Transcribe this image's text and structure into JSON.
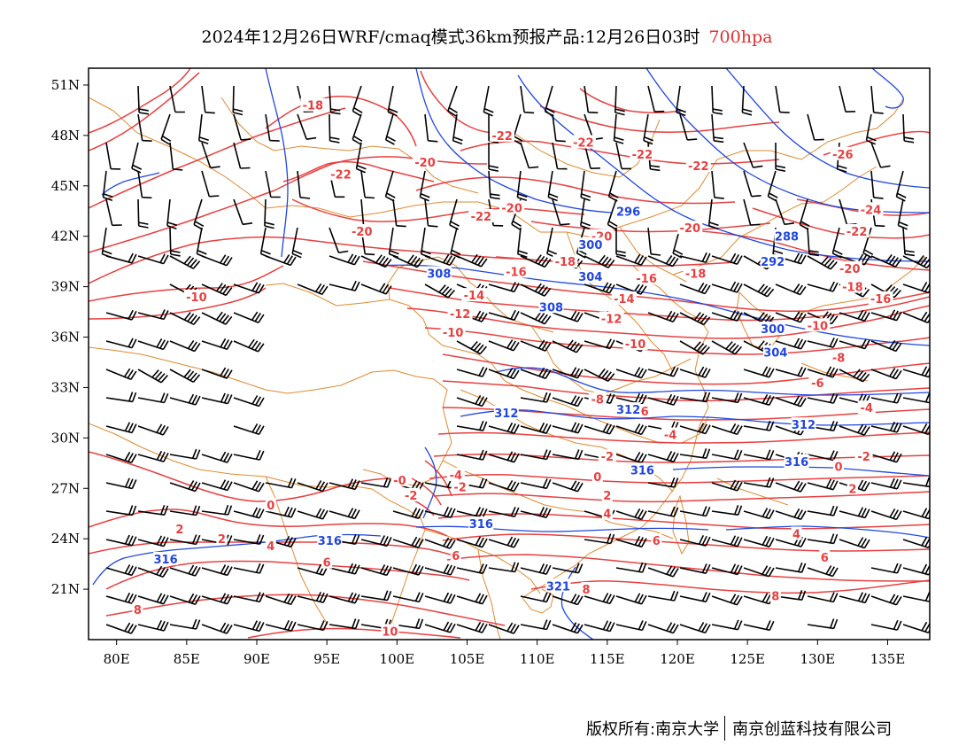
{
  "title": {
    "main": "2024年12月26日WRF/cmaq模式36km预报产品:12月26日03时",
    "level": "700hpa"
  },
  "axes": {
    "lon_ticks": [
      "80E",
      "85E",
      "90E",
      "95E",
      "100E",
      "105E",
      "110E",
      "115E",
      "120E",
      "125E",
      "130E",
      "135E"
    ],
    "lat_ticks": [
      "51N",
      "48N",
      "45N",
      "42N",
      "39N",
      "36N",
      "33N",
      "30N",
      "27N",
      "24N",
      "21N"
    ],
    "lon_range": [
      78,
      138
    ],
    "lat_range": [
      18,
      52
    ]
  },
  "colors": {
    "temperature": "#e84040",
    "height": "#2046e0",
    "boundary": "#e08a30",
    "wind": "#000000",
    "level_text": "#e03030"
  },
  "temperature_labels": [
    {
      "text": "-18",
      "lon": 94.0,
      "lat": 49.8
    },
    {
      "text": "-20",
      "lon": 102.0,
      "lat": 46.4
    },
    {
      "text": "-22",
      "lon": 96.0,
      "lat": 45.7
    },
    {
      "text": "-22",
      "lon": 107.5,
      "lat": 48.0
    },
    {
      "text": "-22",
      "lon": 113.3,
      "lat": 47.6
    },
    {
      "text": "-22",
      "lon": 117.5,
      "lat": 46.9
    },
    {
      "text": "-22",
      "lon": 121.5,
      "lat": 46.2
    },
    {
      "text": "-26",
      "lon": 131.8,
      "lat": 46.9
    },
    {
      "text": "-24",
      "lon": 133.8,
      "lat": 43.6
    },
    {
      "text": "-22",
      "lon": 132.8,
      "lat": 42.3
    },
    {
      "text": "-22",
      "lon": 106.0,
      "lat": 43.2
    },
    {
      "text": "-20",
      "lon": 108.2,
      "lat": 43.7
    },
    {
      "text": "-20",
      "lon": 97.5,
      "lat": 42.3
    },
    {
      "text": "-20",
      "lon": 114.6,
      "lat": 42.0
    },
    {
      "text": "-20",
      "lon": 120.9,
      "lat": 42.5
    },
    {
      "text": "-16",
      "lon": 108.5,
      "lat": 39.9
    },
    {
      "text": "-18",
      "lon": 112.0,
      "lat": 40.5
    },
    {
      "text": "-16",
      "lon": 117.8,
      "lat": 39.5
    },
    {
      "text": "-18",
      "lon": 121.3,
      "lat": 39.8
    },
    {
      "text": "-20",
      "lon": 132.3,
      "lat": 40.1
    },
    {
      "text": "-18",
      "lon": 132.5,
      "lat": 39.0
    },
    {
      "text": "-16",
      "lon": 134.5,
      "lat": 38.3
    },
    {
      "text": "-14",
      "lon": 105.5,
      "lat": 38.5
    },
    {
      "text": "-14",
      "lon": 116.2,
      "lat": 38.3
    },
    {
      "text": "-12",
      "lon": 104.5,
      "lat": 37.4
    },
    {
      "text": "-12",
      "lon": 115.3,
      "lat": 37.1
    },
    {
      "text": "-10",
      "lon": 85.7,
      "lat": 38.4
    },
    {
      "text": "-10",
      "lon": 104.0,
      "lat": 36.3
    },
    {
      "text": "-10",
      "lon": 117.0,
      "lat": 35.6
    },
    {
      "text": "-10",
      "lon": 130.0,
      "lat": 36.7
    },
    {
      "text": "-8",
      "lon": 131.5,
      "lat": 34.8
    },
    {
      "text": "-8",
      "lon": 114.3,
      "lat": 32.3
    },
    {
      "text": "-6",
      "lon": 130.0,
      "lat": 33.3
    },
    {
      "text": "-6",
      "lon": 117.5,
      "lat": 31.6
    },
    {
      "text": "-4",
      "lon": 119.5,
      "lat": 30.2
    },
    {
      "text": "-4",
      "lon": 133.5,
      "lat": 31.8
    },
    {
      "text": "-2",
      "lon": 115.0,
      "lat": 28.9
    },
    {
      "text": "-2",
      "lon": 133.3,
      "lat": 28.9
    },
    {
      "text": "-4",
      "lon": 104.2,
      "lat": 27.8
    },
    {
      "text": "-2",
      "lon": 104.5,
      "lat": 27.1
    },
    {
      "text": "-0",
      "lon": 100.2,
      "lat": 27.5
    },
    {
      "text": "-2",
      "lon": 101.0,
      "lat": 26.6
    },
    {
      "text": "0",
      "lon": 114.3,
      "lat": 27.7
    },
    {
      "text": "0",
      "lon": 131.5,
      "lat": 28.3
    },
    {
      "text": "0",
      "lon": 91.0,
      "lat": 26.0
    },
    {
      "text": "2",
      "lon": 115.0,
      "lat": 26.6
    },
    {
      "text": "2",
      "lon": 132.5,
      "lat": 27.0
    },
    {
      "text": "2",
      "lon": 84.5,
      "lat": 24.6
    },
    {
      "text": "2",
      "lon": 87.5,
      "lat": 24.0
    },
    {
      "text": "4",
      "lon": 115.0,
      "lat": 25.5
    },
    {
      "text": "4",
      "lon": 91.0,
      "lat": 23.6
    },
    {
      "text": "4",
      "lon": 128.5,
      "lat": 24.3
    },
    {
      "text": "6",
      "lon": 95.0,
      "lat": 22.6
    },
    {
      "text": "6",
      "lon": 118.5,
      "lat": 23.9
    },
    {
      "text": "6",
      "lon": 130.5,
      "lat": 22.9
    },
    {
      "text": "6",
      "lon": 104.2,
      "lat": 23.0
    },
    {
      "text": "8",
      "lon": 113.5,
      "lat": 21.0
    },
    {
      "text": "8",
      "lon": 127.0,
      "lat": 20.6
    },
    {
      "text": "8",
      "lon": 81.5,
      "lat": 19.8
    },
    {
      "text": "10",
      "lon": 99.5,
      "lat": 18.5
    }
  ],
  "height_labels": [
    {
      "text": "296",
      "lon": 116.5,
      "lat": 43.5
    },
    {
      "text": "288",
      "lon": 127.8,
      "lat": 42.0
    },
    {
      "text": "292",
      "lon": 126.8,
      "lat": 40.5
    },
    {
      "text": "300",
      "lon": 113.8,
      "lat": 41.5
    },
    {
      "text": "304",
      "lon": 113.8,
      "lat": 39.6
    },
    {
      "text": "308",
      "lon": 103.0,
      "lat": 39.8
    },
    {
      "text": "308",
      "lon": 111.0,
      "lat": 37.8
    },
    {
      "text": "300",
      "lon": 126.8,
      "lat": 36.5
    },
    {
      "text": "304",
      "lon": 127.0,
      "lat": 35.1
    },
    {
      "text": "312",
      "lon": 107.8,
      "lat": 31.5
    },
    {
      "text": "312",
      "lon": 116.5,
      "lat": 31.7
    },
    {
      "text": "312",
      "lon": 129.0,
      "lat": 30.8
    },
    {
      "text": "316",
      "lon": 128.5,
      "lat": 28.6
    },
    {
      "text": "316",
      "lon": 117.5,
      "lat": 28.1
    },
    {
      "text": "316",
      "lon": 106.0,
      "lat": 24.9
    },
    {
      "text": "316",
      "lon": 95.2,
      "lat": 23.9
    },
    {
      "text": "316",
      "lon": 83.5,
      "lat": 22.8
    },
    {
      "text": "321",
      "lon": 111.5,
      "lat": 21.2
    }
  ],
  "footer": {
    "left": "版权所有:南京大学",
    "right": "南京创蓝科技有限公司"
  }
}
